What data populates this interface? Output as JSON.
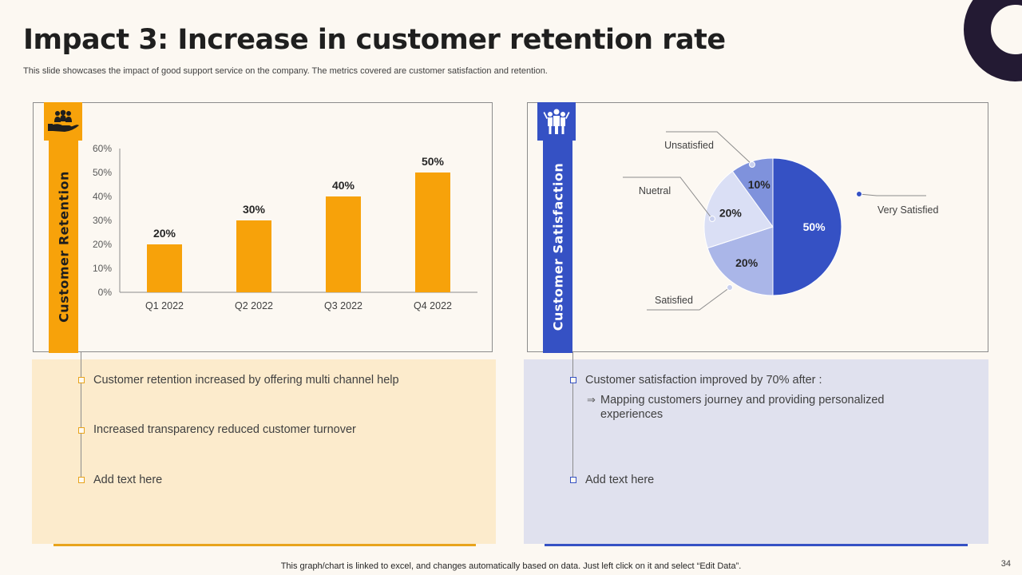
{
  "header": {
    "title": "Impact 3: Increase in customer retention rate",
    "subtitle": "This slide showcases the impact of good support service on the company. The metrics covered are customer satisfaction and retention."
  },
  "left": {
    "strip_label": "Customer Retention",
    "icon": "hand-people-icon",
    "notes": [
      "Customer retention increased by offering multi channel help",
      "Increased transparency reduced customer turnover",
      "Add text here"
    ]
  },
  "right": {
    "strip_label": "Customer Satisfaction",
    "icon": "people-group-icon",
    "notes": [
      "Customer satisfaction improved by 70% after :",
      "Add text here"
    ],
    "sub_note": "Mapping customers journey and providing personalized experiences"
  },
  "chart_data": [
    {
      "type": "bar",
      "categories": [
        "Q1 2022",
        "Q2 2022",
        "Q3 2022",
        "Q4 2022"
      ],
      "values": [
        20,
        30,
        40,
        50
      ],
      "value_labels": [
        "20%",
        "30%",
        "40%",
        "50%"
      ],
      "yticks": [
        "0%",
        "10%",
        "20%",
        "30%",
        "40%",
        "50%",
        "60%"
      ],
      "ylim": [
        0,
        60
      ],
      "ylabel": "Customer Retention",
      "color": "#f7a20a"
    },
    {
      "type": "pie",
      "slices": [
        {
          "label": "Very Satisfied",
          "value": 50,
          "value_label": "50%",
          "color": "#3551c4"
        },
        {
          "label": "Satisfied",
          "value": 20,
          "value_label": "20%",
          "color": "#aab6e8"
        },
        {
          "label": "Nuetral",
          "value": 20,
          "value_label": "20%",
          "color": "#dadff5"
        },
        {
          "label": "Unsatisfied",
          "value": 10,
          "value_label": "10%",
          "color": "#7f92dc"
        }
      ],
      "title": "Customer Satisfaction"
    }
  ],
  "footer": {
    "note": "This graph/chart is linked to excel, and changes automatically based on data. Just left click on it and select “Edit Data”.",
    "page_number": "34"
  },
  "colors": {
    "accent_orange": "#f7a20a",
    "accent_blue": "#3551c4",
    "dark": "#231a33"
  }
}
